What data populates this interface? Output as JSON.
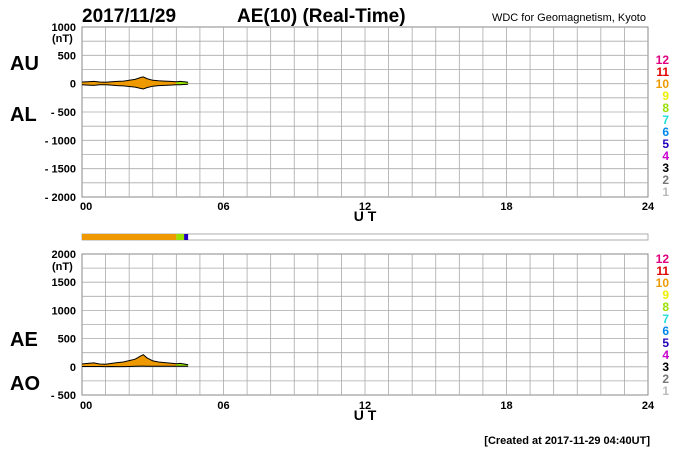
{
  "header": {
    "date": "2017/11/29",
    "title": "AE(10) (Real-Time)",
    "source": "WDC for Geomagnetism, Kyoto"
  },
  "footer": {
    "created": "[Created at 2017-11-29 04:40UT]"
  },
  "legend": {
    "levels": [
      {
        "label": "12",
        "color": "#e0007f"
      },
      {
        "label": "11",
        "color": "#e00000"
      },
      {
        "label": "10",
        "color": "#ee9900"
      },
      {
        "label": "9",
        "color": "#eeee00"
      },
      {
        "label": "8",
        "color": "#99e000"
      },
      {
        "label": "7",
        "color": "#22dddd"
      },
      {
        "label": "6",
        "color": "#0088ee"
      },
      {
        "label": "5",
        "color": "#2200bb"
      },
      {
        "label": "4",
        "color": "#cc00cc"
      },
      {
        "label": "3",
        "color": "#000000"
      },
      {
        "label": "2",
        "color": "#777777"
      },
      {
        "label": "1",
        "color": "#bbbbbb"
      }
    ]
  },
  "station_bar": {
    "segments": [
      {
        "from": 0,
        "to": 4.0,
        "color": "#ee9900"
      },
      {
        "from": 4.0,
        "to": 4.33,
        "color": "#99e000"
      },
      {
        "from": 4.33,
        "to": 4.5,
        "color": "#2200bb"
      }
    ]
  },
  "chart_data": [
    {
      "type": "area",
      "panel_labels": [
        "AU",
        "AL"
      ],
      "unit": "(nT)",
      "xlabel": "U T",
      "ylabel": "",
      "xlim": [
        0,
        24
      ],
      "ylim": [
        -2000,
        1000
      ],
      "x_ticks": [
        0,
        6,
        12,
        18,
        24
      ],
      "x_tick_labels": [
        "00",
        "06",
        "12",
        "18",
        "24"
      ],
      "y_ticks": [
        1000,
        500,
        0,
        -500,
        -1000,
        -1500,
        -2000
      ],
      "y_tick_labels": [
        "1000",
        "500",
        "0",
        "- 500",
        "- 1000",
        "- 1500",
        "- 2000"
      ],
      "grid": true,
      "fill_color": "#ee9900",
      "series": [
        {
          "name": "AU",
          "x": [
            0,
            0.25,
            0.5,
            0.75,
            1.0,
            1.25,
            1.5,
            1.75,
            2.0,
            2.25,
            2.5,
            2.6,
            2.75,
            3.0,
            3.25,
            3.5,
            3.75,
            4.0,
            4.17,
            4.33,
            4.5
          ],
          "y": [
            30,
            35,
            40,
            30,
            25,
            35,
            40,
            45,
            60,
            75,
            110,
            120,
            90,
            60,
            50,
            45,
            40,
            35,
            40,
            35,
            25
          ]
        },
        {
          "name": "AL",
          "x": [
            0,
            0.25,
            0.5,
            0.75,
            1.0,
            1.25,
            1.5,
            1.75,
            2.0,
            2.25,
            2.5,
            2.6,
            2.75,
            3.0,
            3.25,
            3.5,
            3.75,
            4.0,
            4.17,
            4.33,
            4.5
          ],
          "y": [
            -20,
            -25,
            -30,
            -20,
            -20,
            -25,
            -35,
            -40,
            -50,
            -60,
            -85,
            -95,
            -70,
            -45,
            -35,
            -30,
            -25,
            -20,
            -20,
            -15,
            -10
          ]
        }
      ],
      "last_segment": {
        "from": 4.0,
        "to": 4.5,
        "color": "#99e000"
      }
    },
    {
      "type": "area",
      "panel_labels": [
        "AE",
        "AO"
      ],
      "unit": "(nT)",
      "xlabel": "U T",
      "ylabel": "",
      "xlim": [
        0,
        24
      ],
      "ylim": [
        -500,
        2000
      ],
      "x_ticks": [
        0,
        6,
        12,
        18,
        24
      ],
      "x_tick_labels": [
        "00",
        "06",
        "12",
        "18",
        "24"
      ],
      "y_ticks": [
        2000,
        1500,
        1000,
        500,
        0,
        -500
      ],
      "y_tick_labels": [
        "2000",
        "1500",
        "1000",
        "500",
        "0",
        "- 500"
      ],
      "grid": true,
      "fill_color": "#ee9900",
      "series": [
        {
          "name": "AE",
          "x": [
            0,
            0.25,
            0.5,
            0.75,
            1.0,
            1.25,
            1.5,
            1.75,
            2.0,
            2.25,
            2.5,
            2.6,
            2.75,
            3.0,
            3.25,
            3.5,
            3.75,
            4.0,
            4.17,
            4.33,
            4.5
          ],
          "y": [
            50,
            60,
            70,
            50,
            45,
            60,
            75,
            85,
            110,
            135,
            195,
            215,
            160,
            105,
            85,
            75,
            65,
            55,
            60,
            50,
            35
          ]
        },
        {
          "name": "AO",
          "x": [
            0,
            0.25,
            0.5,
            0.75,
            1.0,
            1.25,
            1.5,
            1.75,
            2.0,
            2.25,
            2.5,
            2.6,
            2.75,
            3.0,
            3.25,
            3.5,
            3.75,
            4.0,
            4.17,
            4.33,
            4.5
          ],
          "y": [
            5,
            5,
            5,
            5,
            3,
            5,
            3,
            3,
            5,
            8,
            12,
            13,
            10,
            8,
            8,
            8,
            8,
            8,
            10,
            10,
            8
          ]
        }
      ],
      "last_segment": {
        "from": 4.0,
        "to": 4.5,
        "color": "#99e000"
      }
    }
  ]
}
